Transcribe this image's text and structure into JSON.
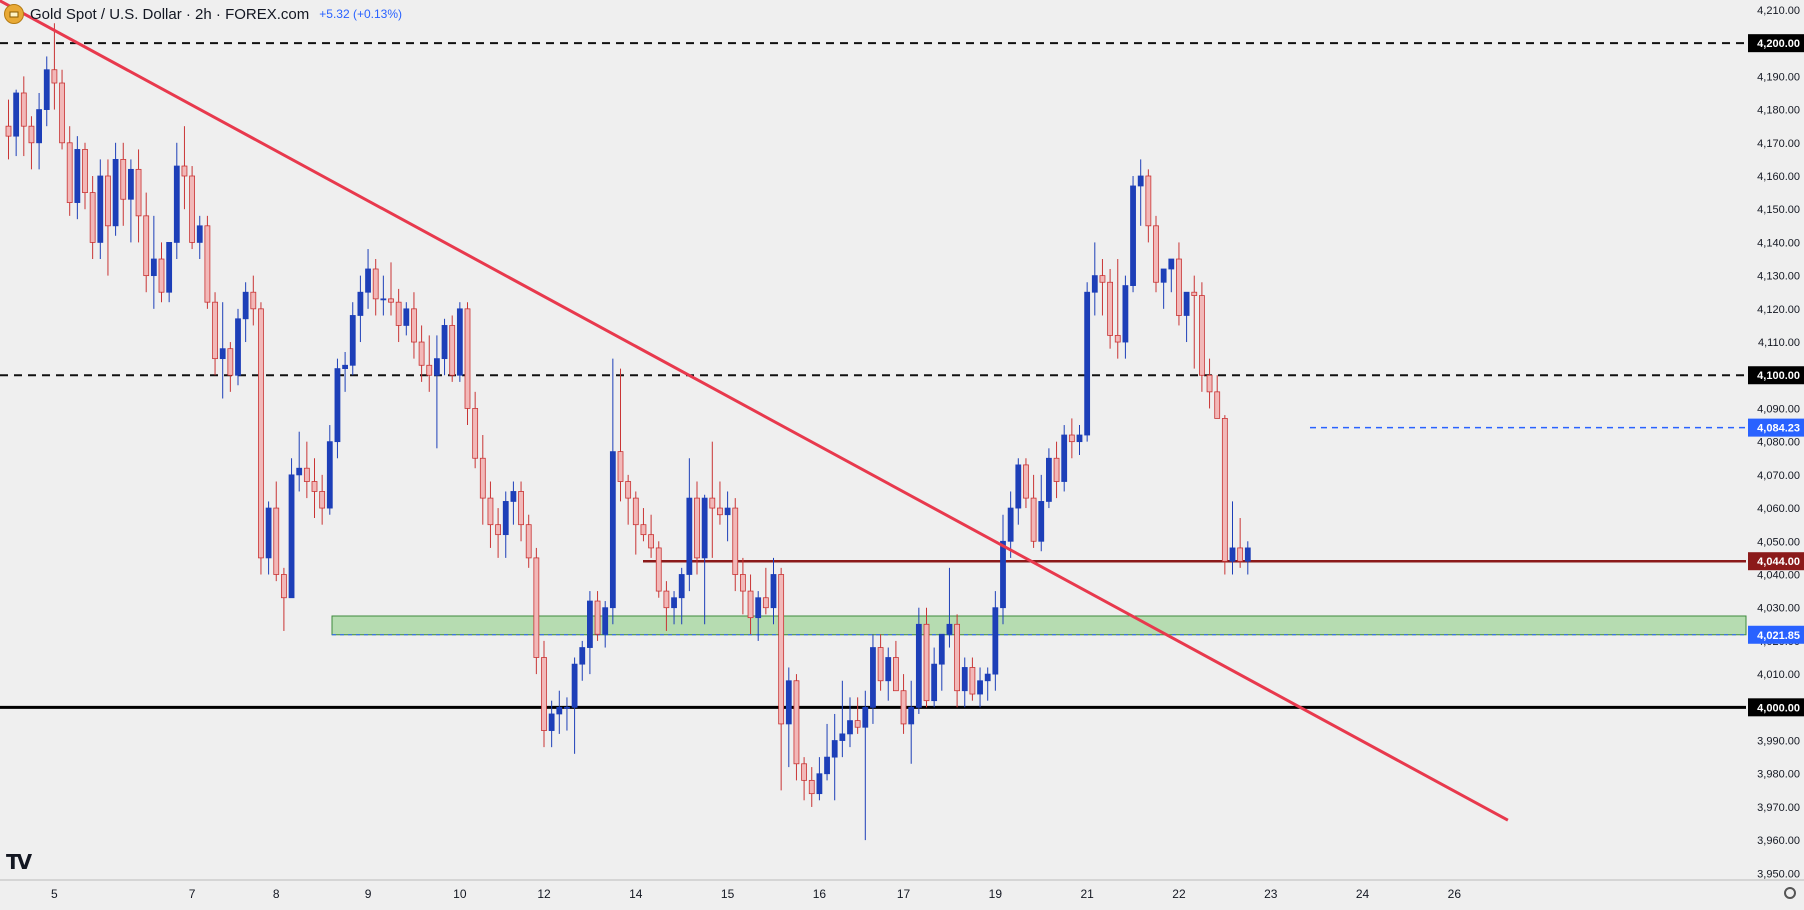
{
  "header": {
    "symbol": "Gold Spot / U.S. Dollar · 2h · FOREX.com",
    "change": "+5.32 (+0.13%)",
    "logo_icon": "gold-coin-icon"
  },
  "branding": {
    "logo_text": "TV",
    "logo_icon": "tradingview-logo-icon"
  },
  "settings_icon": "gear-icon",
  "colors": {
    "background": "#efefef",
    "bull": "#1d3fb8",
    "bear_fill": "#f2b8b8",
    "bear_stroke": "#c93434",
    "trendline": "#e8394d",
    "support_line": "#8b1a1a",
    "zone_fill": "#b6dcb1",
    "zone_stroke": "#3c8a3c",
    "level_dashed": "#111111",
    "level_blue": "#2962ff"
  },
  "chart_data": {
    "type": "candlestick",
    "title": "Gold Spot / U.S. Dollar · 2h · FOREX.com",
    "ylim": [
      3948,
      4213
    ],
    "y_ticks": [
      3950,
      3960,
      3970,
      3980,
      3990,
      4000,
      4010,
      4020,
      4030,
      4040,
      4050,
      4060,
      4070,
      4080,
      4090,
      4100,
      4110,
      4120,
      4130,
      4140,
      4150,
      4160,
      4170,
      4180,
      4190,
      4200,
      4210
    ],
    "y_tick_labels": [
      "3,950.00",
      "3,960.00",
      "3,970.00",
      "3,980.00",
      "3,990.00",
      "4,000.00",
      "4,010.00",
      "4,020.00",
      "4,030.00",
      "4,040.00",
      "4,050.00",
      "4,060.00",
      "4,070.00",
      "4,080.00",
      "4,090.00",
      "4,100.00",
      "4,110.00",
      "4,120.00",
      "4,130.00",
      "4,140.00",
      "4,150.00",
      "4,160.00",
      "4,170.00",
      "4,180.00",
      "4,190.00",
      "4,200.00",
      "4,210.00"
    ],
    "x_labels": [
      {
        "label": "5",
        "bar": 6
      },
      {
        "label": "7",
        "bar": 24
      },
      {
        "label": "8",
        "bar": 35
      },
      {
        "label": "9",
        "bar": 47
      },
      {
        "label": "10",
        "bar": 59
      },
      {
        "label": "12",
        "bar": 70
      },
      {
        "label": "14",
        "bar": 82
      },
      {
        "label": "15",
        "bar": 94
      },
      {
        "label": "16",
        "bar": 106
      },
      {
        "label": "17",
        "bar": 117
      },
      {
        "label": "19",
        "bar": 129
      },
      {
        "label": "21",
        "bar": 141
      },
      {
        "label": "22",
        "bar": 153
      },
      {
        "label": "23",
        "bar": 165
      },
      {
        "label": "24",
        "bar": 177
      },
      {
        "label": "26",
        "bar": 189
      }
    ],
    "candles": [
      [
        4175,
        4183,
        4165,
        4172
      ],
      [
        4172,
        4186,
        4166,
        4185
      ],
      [
        4185,
        4190,
        4166,
        4175
      ],
      [
        4175,
        4178,
        4162,
        4170
      ],
      [
        4170,
        4185,
        4162,
        4180
      ],
      [
        4180,
        4196,
        4175,
        4192
      ],
      [
        4192,
        4206,
        4180,
        4188
      ],
      [
        4188,
        4192,
        4168,
        4170
      ],
      [
        4170,
        4175,
        4148,
        4152
      ],
      [
        4152,
        4172,
        4147,
        4168
      ],
      [
        4168,
        4170,
        4150,
        4155
      ],
      [
        4155,
        4160,
        4135,
        4140
      ],
      [
        4140,
        4165,
        4135,
        4160
      ],
      [
        4160,
        4165,
        4130,
        4145
      ],
      [
        4145,
        4170,
        4142,
        4165
      ],
      [
        4165,
        4170,
        4145,
        4153
      ],
      [
        4153,
        4165,
        4140,
        4162
      ],
      [
        4162,
        4168,
        4140,
        4148
      ],
      [
        4148,
        4155,
        4125,
        4130
      ],
      [
        4130,
        4148,
        4120,
        4135
      ],
      [
        4135,
        4140,
        4122,
        4125
      ],
      [
        4125,
        4140,
        4122,
        4140
      ],
      [
        4140,
        4170,
        4135,
        4163
      ],
      [
        4163,
        4175,
        4150,
        4160
      ],
      [
        4160,
        4163,
        4138,
        4140
      ],
      [
        4140,
        4148,
        4135,
        4145
      ],
      [
        4145,
        4148,
        4120,
        4122
      ],
      [
        4122,
        4125,
        4100,
        4105
      ],
      [
        4105,
        4122,
        4093,
        4108
      ],
      [
        4108,
        4110,
        4095,
        4100
      ],
      [
        4100,
        4120,
        4097,
        4117
      ],
      [
        4117,
        4128,
        4110,
        4125
      ],
      [
        4125,
        4130,
        4115,
        4120
      ],
      [
        4120,
        4122,
        4040,
        4045
      ],
      [
        4045,
        4062,
        4040,
        4060
      ],
      [
        4060,
        4068,
        4038,
        4040
      ],
      [
        4040,
        4042,
        4023,
        4033
      ],
      [
        4033,
        4075,
        4033,
        4070
      ],
      [
        4070,
        4083,
        4065,
        4072
      ],
      [
        4072,
        4080,
        4063,
        4068
      ],
      [
        4068,
        4075,
        4057,
        4065
      ],
      [
        4065,
        4070,
        4055,
        4060
      ],
      [
        4060,
        4085,
        4058,
        4080
      ],
      [
        4080,
        4105,
        4075,
        4102
      ],
      [
        4102,
        4107,
        4095,
        4103
      ],
      [
        4103,
        4122,
        4100,
        4118
      ],
      [
        4118,
        4130,
        4110,
        4125
      ],
      [
        4125,
        4138,
        4120,
        4132
      ],
      [
        4132,
        4135,
        4118,
        4123
      ],
      [
        4123,
        4130,
        4118,
        4123
      ],
      [
        4123,
        4134,
        4118,
        4122
      ],
      [
        4122,
        4126,
        4110,
        4115
      ],
      [
        4115,
        4122,
        4112,
        4120
      ],
      [
        4120,
        4125,
        4105,
        4110
      ],
      [
        4110,
        4115,
        4098,
        4103
      ],
      [
        4103,
        4112,
        4095,
        4100
      ],
      [
        4100,
        4112,
        4078,
        4105
      ],
      [
        4105,
        4117,
        4100,
        4115
      ],
      [
        4115,
        4118,
        4098,
        4100
      ],
      [
        4100,
        4122,
        4098,
        4120
      ],
      [
        4120,
        4122,
        4085,
        4090
      ],
      [
        4090,
        4095,
        4072,
        4075
      ],
      [
        4075,
        4082,
        4055,
        4063
      ],
      [
        4063,
        4068,
        4048,
        4055
      ],
      [
        4055,
        4060,
        4045,
        4052
      ],
      [
        4052,
        4065,
        4045,
        4062
      ],
      [
        4062,
        4068,
        4055,
        4065
      ],
      [
        4065,
        4068,
        4050,
        4055
      ],
      [
        4055,
        4058,
        4042,
        4045
      ],
      [
        4045,
        4048,
        4010,
        4015
      ],
      [
        4015,
        4020,
        3988,
        3993
      ],
      [
        3993,
        4002,
        3988,
        3998
      ],
      [
        3998,
        4005,
        3992,
        4000
      ],
      [
        4000,
        4003,
        3993,
        4000
      ],
      [
        4000,
        4015,
        3986,
        4013
      ],
      [
        4013,
        4020,
        4008,
        4018
      ],
      [
        4018,
        4035,
        4010,
        4032
      ],
      [
        4032,
        4035,
        4020,
        4022
      ],
      [
        4022,
        4032,
        4018,
        4030
      ],
      [
        4030,
        4105,
        4025,
        4077
      ],
      [
        4077,
        4102,
        4062,
        4068
      ],
      [
        4068,
        4070,
        4055,
        4063
      ],
      [
        4063,
        4065,
        4046,
        4055
      ],
      [
        4055,
        4060,
        4050,
        4052
      ],
      [
        4052,
        4058,
        4045,
        4048
      ],
      [
        4048,
        4050,
        4033,
        4035
      ],
      [
        4035,
        4038,
        4023,
        4030
      ],
      [
        4030,
        4035,
        4025,
        4033
      ],
      [
        4033,
        4042,
        4025,
        4040
      ],
      [
        4040,
        4075,
        4035,
        4063
      ],
      [
        4063,
        4068,
        4040,
        4045
      ],
      [
        4045,
        4064,
        4025,
        4063
      ],
      [
        4063,
        4080,
        4045,
        4060
      ],
      [
        4060,
        4068,
        4055,
        4058
      ],
      [
        4058,
        4065,
        4050,
        4060
      ],
      [
        4060,
        4063,
        4035,
        4040
      ],
      [
        4040,
        4045,
        4028,
        4035
      ],
      [
        4035,
        4040,
        4022,
        4027
      ],
      [
        4027,
        4035,
        4020,
        4033
      ],
      [
        4033,
        4042,
        4028,
        4030
      ],
      [
        4030,
        4045,
        4025,
        4040
      ],
      [
        4040,
        4042,
        3975,
        3995
      ],
      [
        3995,
        4012,
        3982,
        4008
      ],
      [
        4008,
        4010,
        3978,
        3983
      ],
      [
        3983,
        3985,
        3972,
        3978
      ],
      [
        3978,
        3982,
        3970,
        3974
      ],
      [
        3974,
        3985,
        3972,
        3980
      ],
      [
        3980,
        3995,
        3978,
        3985
      ],
      [
        3985,
        3998,
        3972,
        3990
      ],
      [
        3990,
        4008,
        3985,
        3992
      ],
      [
        3992,
        4003,
        3988,
        3996
      ],
      [
        3996,
        4003,
        3992,
        3994
      ],
      [
        3994,
        4005,
        3960,
        4000
      ],
      [
        4000,
        4022,
        3995,
        4018
      ],
      [
        4018,
        4022,
        4005,
        4008
      ],
      [
        4008,
        4018,
        4002,
        4015
      ],
      [
        4015,
        4020,
        4005,
        4005
      ],
      [
        4005,
        4010,
        3992,
        3995
      ],
      [
        3995,
        4008,
        3983,
        4000
      ],
      [
        4000,
        4030,
        3998,
        4025
      ],
      [
        4025,
        4030,
        4000,
        4002
      ],
      [
        4002,
        4018,
        4000,
        4013
      ],
      [
        4013,
        4022,
        4005,
        4022
      ],
      [
        4022,
        4042,
        4018,
        4025
      ],
      [
        4025,
        4028,
        4000,
        4005
      ],
      [
        4005,
        4015,
        4000,
        4012
      ],
      [
        4012,
        4015,
        4002,
        4004
      ],
      [
        4004,
        4012,
        4000,
        4008
      ],
      [
        4008,
        4012,
        4002,
        4010
      ],
      [
        4010,
        4035,
        4005,
        4030
      ],
      [
        4030,
        4058,
        4025,
        4050
      ],
      [
        4050,
        4065,
        4045,
        4060
      ],
      [
        4060,
        4075,
        4055,
        4073
      ],
      [
        4073,
        4075,
        4060,
        4063
      ],
      [
        4063,
        4070,
        4048,
        4050
      ],
      [
        4050,
        4070,
        4047,
        4062
      ],
      [
        4062,
        4078,
        4060,
        4075
      ],
      [
        4075,
        4080,
        4063,
        4068
      ],
      [
        4068,
        4085,
        4065,
        4082
      ],
      [
        4082,
        4087,
        4075,
        4080
      ],
      [
        4080,
        4085,
        4076,
        4082
      ],
      [
        4082,
        4128,
        4080,
        4125
      ],
      [
        4125,
        4140,
        4118,
        4130
      ],
      [
        4130,
        4135,
        4118,
        4128
      ],
      [
        4128,
        4132,
        4108,
        4112
      ],
      [
        4112,
        4135,
        4105,
        4110
      ],
      [
        4110,
        4130,
        4105,
        4127
      ],
      [
        4127,
        4160,
        4125,
        4157
      ],
      [
        4157,
        4165,
        4145,
        4160
      ],
      [
        4160,
        4162,
        4140,
        4145
      ],
      [
        4145,
        4148,
        4125,
        4128
      ],
      [
        4128,
        4130,
        4120,
        4132
      ],
      [
        4132,
        4135,
        4125,
        4135
      ],
      [
        4135,
        4140,
        4115,
        4118
      ],
      [
        4118,
        4125,
        4110,
        4125
      ],
      [
        4125,
        4130,
        4102,
        4124
      ],
      [
        4124,
        4128,
        4095,
        4100
      ],
      [
        4100,
        4105,
        4090,
        4095
      ],
      [
        4095,
        4100,
        4088,
        4087
      ],
      [
        4087,
        4088,
        4040,
        4044
      ],
      [
        4044,
        4062,
        4040,
        4048
      ],
      [
        4048,
        4057,
        4042,
        4044
      ],
      [
        4044,
        4050,
        4040,
        4048
      ]
    ],
    "levels": [
      {
        "name": "4,200.00",
        "price": 4200,
        "style": "dashed"
      },
      {
        "name": "4,100.00",
        "price": 4100,
        "style": "dashed"
      },
      {
        "name": "4,084.23",
        "price": 4084.23,
        "style": "blue-dashed"
      },
      {
        "name": "4,044.00",
        "price": 4044,
        "style": "support"
      },
      {
        "name": "4,021.85",
        "price": 4021.85,
        "style": "zone-bottom"
      },
      {
        "name": "4,000.00",
        "price": 4000,
        "style": "solid"
      }
    ],
    "zone": {
      "low": 4021.85,
      "high": 4027.5
    },
    "trendline": {
      "from": {
        "bar": 0,
        "price": 4213
      },
      "to": {
        "bar": 196,
        "price": 3966
      }
    }
  }
}
